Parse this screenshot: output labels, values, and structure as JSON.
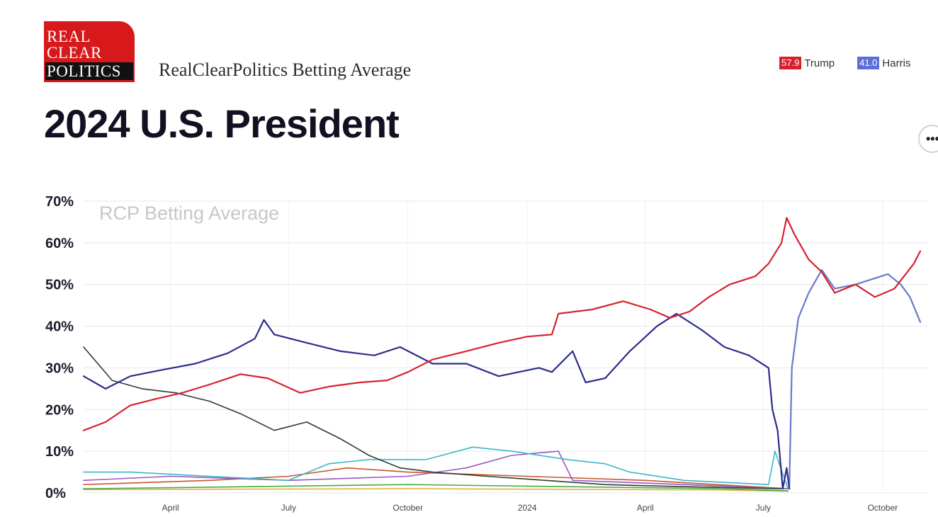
{
  "header": {
    "logo_lines": [
      "REAL",
      "CLEAR",
      "POLITICS"
    ],
    "subtitle": "RealClearPolitics Betting Average",
    "title": "2024 U.S. President",
    "more_label": "•••"
  },
  "legend": [
    {
      "value": "57.9",
      "name": "Trump",
      "color": "#d7212f"
    },
    {
      "value": "41.0",
      "name": "Harris",
      "color": "#5b6fd6"
    }
  ],
  "chart_data": {
    "type": "line",
    "title": "RCP Betting Average",
    "ylim": [
      0,
      70
    ],
    "y_ticks": [
      "0%",
      "10%",
      "20%",
      "30%",
      "40%",
      "50%",
      "60%",
      "70%"
    ],
    "x_ticks": [
      "April",
      "July",
      "October",
      "2024",
      "April",
      "July",
      "October"
    ],
    "xlim": [
      "2023-01-24",
      "2024-11-05"
    ],
    "grid": true,
    "series": [
      {
        "color": "#d7212f",
        "points": [
          [
            "2023-01-24",
            15
          ],
          [
            "2023-02-10",
            17
          ],
          [
            "2023-03-01",
            21
          ],
          [
            "2023-03-20",
            22.5
          ],
          [
            "2023-04-10",
            24
          ],
          [
            "2023-05-01",
            26
          ],
          [
            "2023-05-25",
            28.5
          ],
          [
            "2023-06-15",
            27.5
          ],
          [
            "2023-07-10",
            24
          ],
          [
            "2023-08-01",
            25.5
          ],
          [
            "2023-08-25",
            26.5
          ],
          [
            "2023-09-15",
            27
          ],
          [
            "2023-10-01",
            29
          ],
          [
            "2023-10-20",
            32
          ],
          [
            "2023-11-15",
            34
          ],
          [
            "2023-12-10",
            36
          ],
          [
            "2024-01-01",
            37.5
          ],
          [
            "2024-01-20",
            38
          ],
          [
            "2024-01-25",
            43
          ],
          [
            "2024-02-20",
            44
          ],
          [
            "2024-03-15",
            46
          ],
          [
            "2024-04-05",
            44
          ],
          [
            "2024-04-20",
            42
          ],
          [
            "2024-05-05",
            43.5
          ],
          [
            "2024-05-20",
            47
          ],
          [
            "2024-06-05",
            50
          ],
          [
            "2024-06-25",
            52
          ],
          [
            "2024-07-05",
            55
          ],
          [
            "2024-07-15",
            60
          ],
          [
            "2024-07-19",
            66
          ],
          [
            "2024-07-25",
            62
          ],
          [
            "2024-08-05",
            56
          ],
          [
            "2024-08-15",
            53
          ],
          [
            "2024-08-25",
            48
          ],
          [
            "2024-09-10",
            50
          ],
          [
            "2024-09-25",
            47
          ],
          [
            "2024-10-10",
            49
          ],
          [
            "2024-10-25",
            55
          ],
          [
            "2024-10-30",
            58
          ]
        ]
      },
      {
        "color": "#2c2c8c",
        "points": [
          [
            "2023-01-24",
            28
          ],
          [
            "2023-02-10",
            25
          ],
          [
            "2023-03-01",
            28
          ],
          [
            "2023-03-25",
            29.5
          ],
          [
            "2023-04-20",
            31
          ],
          [
            "2023-05-15",
            33.5
          ],
          [
            "2023-06-05",
            37
          ],
          [
            "2023-06-12",
            41.5
          ],
          [
            "2023-06-20",
            38
          ],
          [
            "2023-07-15",
            36
          ],
          [
            "2023-08-10",
            34
          ],
          [
            "2023-09-05",
            33
          ],
          [
            "2023-09-25",
            35
          ],
          [
            "2023-10-20",
            31
          ],
          [
            "2023-11-15",
            31
          ],
          [
            "2023-12-10",
            28
          ],
          [
            "2024-01-10",
            30
          ],
          [
            "2024-01-20",
            29
          ],
          [
            "2024-02-05",
            34
          ],
          [
            "2024-02-15",
            26.5
          ],
          [
            "2024-03-01",
            27.5
          ],
          [
            "2024-03-20",
            34
          ],
          [
            "2024-04-10",
            40
          ],
          [
            "2024-04-25",
            43
          ],
          [
            "2024-05-15",
            39
          ],
          [
            "2024-06-01",
            35
          ],
          [
            "2024-06-20",
            33
          ],
          [
            "2024-07-05",
            30
          ],
          [
            "2024-07-08",
            20
          ],
          [
            "2024-07-12",
            15
          ],
          [
            "2024-07-16",
            1
          ],
          [
            "2024-07-19",
            6
          ],
          [
            "2024-07-21",
            1
          ]
        ]
      },
      {
        "color": "#6b78c8",
        "points": [
          [
            "2024-07-21",
            1
          ],
          [
            "2024-07-23",
            30
          ],
          [
            "2024-07-28",
            42
          ],
          [
            "2024-08-05",
            48
          ],
          [
            "2024-08-15",
            53.5
          ],
          [
            "2024-08-25",
            49
          ],
          [
            "2024-09-10",
            50
          ],
          [
            "2024-09-25",
            51.5
          ],
          [
            "2024-10-05",
            52.5
          ],
          [
            "2024-10-15",
            50
          ],
          [
            "2024-10-22",
            47
          ],
          [
            "2024-10-30",
            41
          ]
        ]
      },
      {
        "color": "#2f3d2f",
        "points": [
          [
            "2023-01-24",
            35
          ],
          [
            "2023-02-15",
            27
          ],
          [
            "2023-03-10",
            25
          ],
          [
            "2023-04-05",
            24
          ],
          [
            "2023-05-01",
            22
          ],
          [
            "2023-05-25",
            19
          ],
          [
            "2023-06-20",
            15
          ],
          [
            "2023-07-15",
            17
          ],
          [
            "2023-08-10",
            13
          ],
          [
            "2023-09-01",
            9
          ],
          [
            "2023-09-25",
            6
          ],
          [
            "2023-10-20",
            5
          ],
          [
            "2023-12-01",
            4
          ],
          [
            "2024-01-15",
            3
          ],
          [
            "2024-03-01",
            2
          ],
          [
            "2024-05-01",
            1.5
          ],
          [
            "2024-07-15",
            1
          ]
        ]
      },
      {
        "color": "#38b7c9",
        "points": [
          [
            "2023-01-24",
            5
          ],
          [
            "2023-03-01",
            5
          ],
          [
            "2023-05-01",
            4
          ],
          [
            "2023-07-01",
            3
          ],
          [
            "2023-08-01",
            7
          ],
          [
            "2023-09-01",
            8
          ],
          [
            "2023-10-15",
            8
          ],
          [
            "2023-11-20",
            11
          ],
          [
            "2023-12-20",
            10
          ],
          [
            "2024-02-01",
            8
          ],
          [
            "2024-03-01",
            7
          ],
          [
            "2024-03-20",
            5
          ],
          [
            "2024-05-01",
            3
          ],
          [
            "2024-07-05",
            2
          ],
          [
            "2024-07-10",
            10
          ],
          [
            "2024-07-20",
            1
          ]
        ]
      },
      {
        "color": "#9a57c2",
        "points": [
          [
            "2023-01-24",
            3
          ],
          [
            "2023-04-01",
            4
          ],
          [
            "2023-07-01",
            3
          ],
          [
            "2023-10-01",
            4
          ],
          [
            "2023-11-15",
            6
          ],
          [
            "2023-12-20",
            9
          ],
          [
            "2024-01-25",
            10
          ],
          [
            "2024-02-05",
            3
          ],
          [
            "2024-05-01",
            2
          ],
          [
            "2024-07-20",
            1
          ]
        ]
      },
      {
        "color": "#c8562e",
        "points": [
          [
            "2023-01-24",
            2
          ],
          [
            "2023-05-01",
            3
          ],
          [
            "2023-07-01",
            4
          ],
          [
            "2023-08-15",
            6
          ],
          [
            "2023-10-01",
            5
          ],
          [
            "2024-01-01",
            4
          ],
          [
            "2024-04-01",
            3
          ],
          [
            "2024-07-20",
            1
          ]
        ]
      },
      {
        "color": "#48a84a",
        "points": [
          [
            "2023-01-24",
            1
          ],
          [
            "2023-06-01",
            1.5
          ],
          [
            "2023-10-01",
            2
          ],
          [
            "2024-02-01",
            1.5
          ],
          [
            "2024-06-01",
            1
          ],
          [
            "2024-07-20",
            0.5
          ]
        ]
      },
      {
        "color": "#e0b430",
        "points": [
          [
            "2023-01-24",
            0.8
          ],
          [
            "2023-10-01",
            1
          ],
          [
            "2024-06-01",
            0.7
          ],
          [
            "2024-07-20",
            0.4
          ]
        ]
      }
    ]
  }
}
